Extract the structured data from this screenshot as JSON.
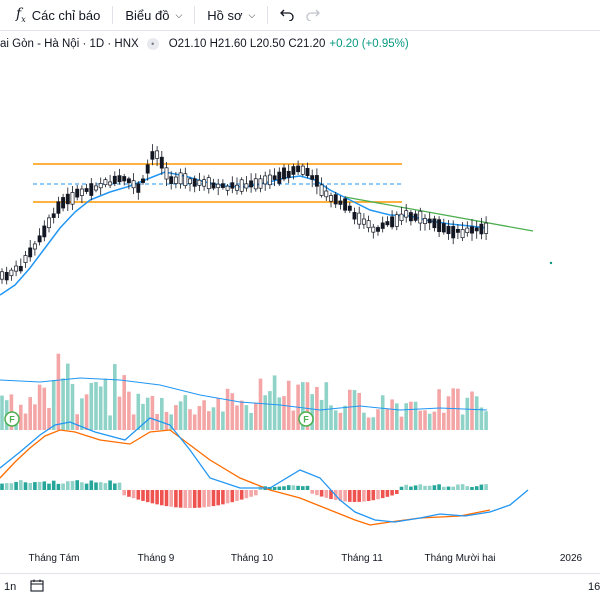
{
  "toolbar": {
    "indicators_label": "Các chỉ báo",
    "chart_label": "Biểu đồ",
    "profile_label": "Hồ sơ",
    "fx_glyph": "f",
    "fx_sub": "x",
    "undo_icon": "undo-icon",
    "redo_icon": "redo-icon"
  },
  "legend": {
    "symbol": "ai Gòn - Hà Nội · 1D · HNX",
    "open": "O21.10",
    "high": "H21.60",
    "low": "L20.50",
    "close": "C21.20",
    "change": "+0.20 (+0.95%)"
  },
  "colors": {
    "up": "#26a69a",
    "down": "#ef5350",
    "ma": "#2196f3",
    "trendline": "#4caf50",
    "range": "#ff9800",
    "macd": "#2196f3",
    "signal": "#ff6d00"
  },
  "x_axis": {
    "labels": [
      "Tháng Tám",
      "Tháng 9",
      "Tháng 10",
      "Tháng 11",
      "Tháng Mười hai",
      "2026"
    ]
  },
  "markers": {
    "event_label": "F"
  },
  "bottom": {
    "range_label": "1n",
    "right_label": "16",
    "calendar_icon": "calendar-icon"
  }
}
